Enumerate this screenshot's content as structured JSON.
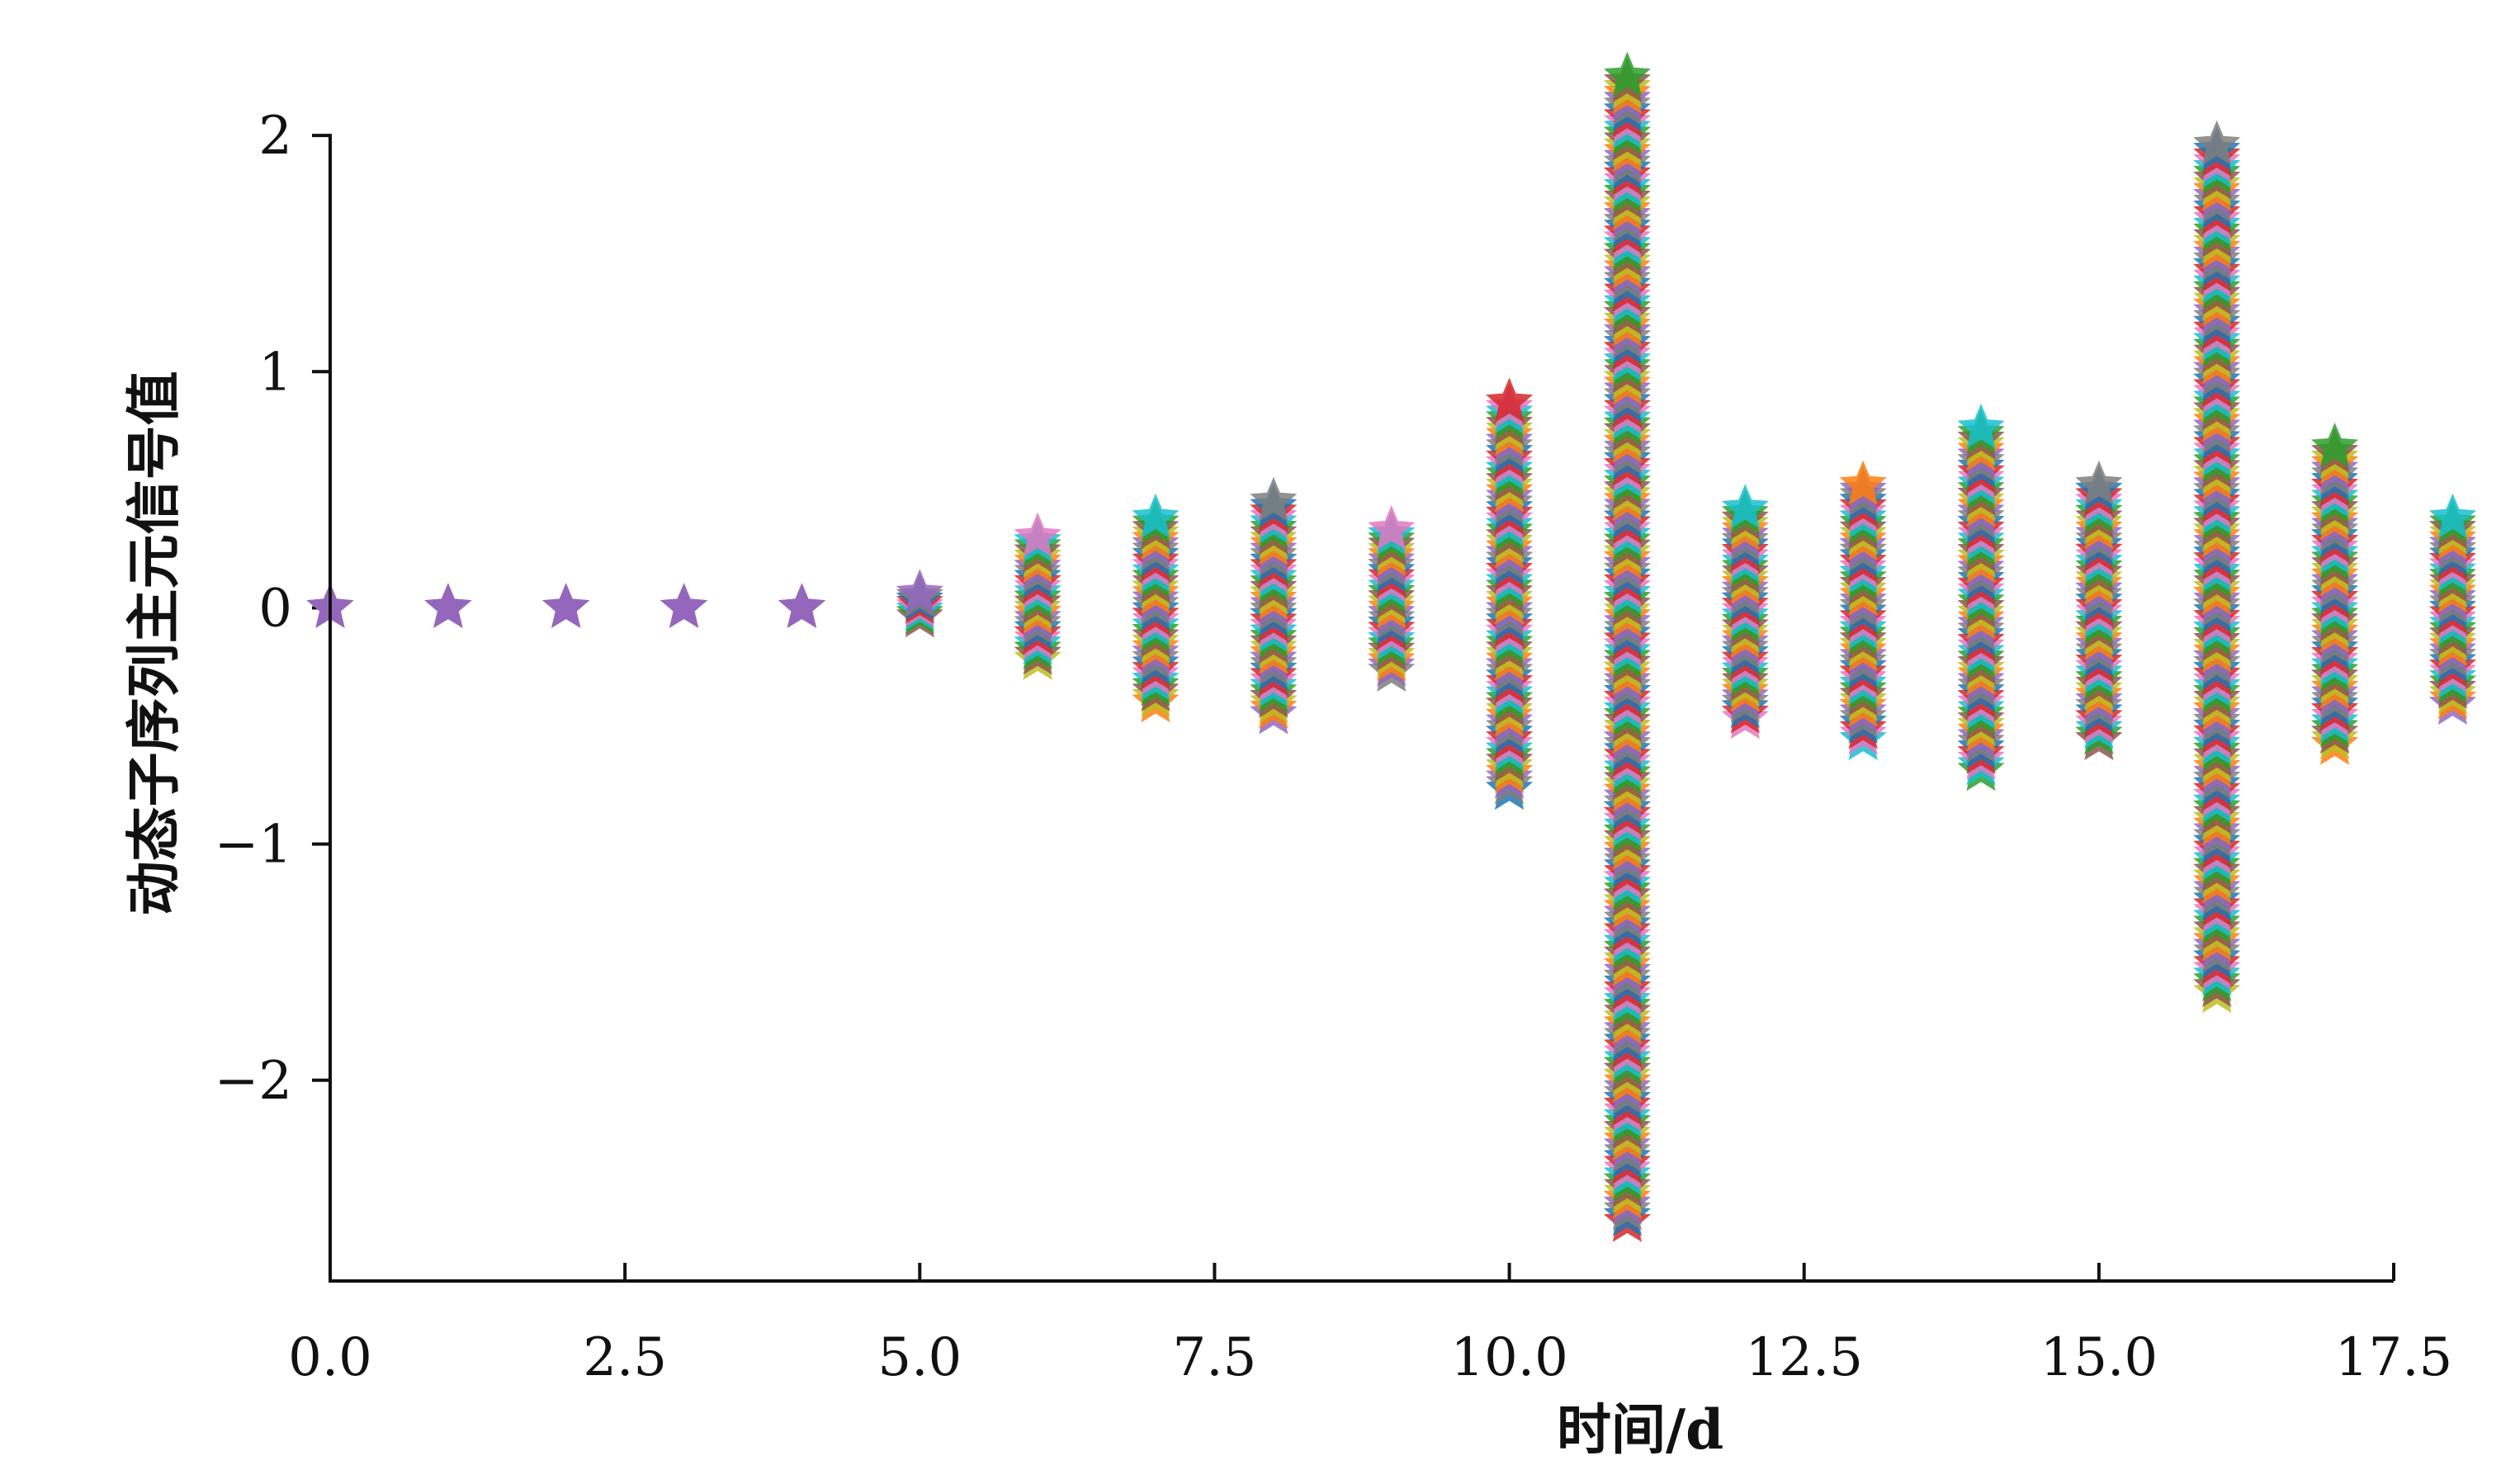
{
  "chart_data": {
    "type": "scatter",
    "title": "",
    "xlabel": "时间/d",
    "ylabel": "动态子序列主元信号值",
    "xlim": [
      0,
      17.5
    ],
    "ylim": [
      -2.85,
      2.35
    ],
    "x_ticks": [
      "0.0",
      "2.5",
      "5.0",
      "7.5",
      "10.0",
      "12.5",
      "15.0",
      "17.5"
    ],
    "y_ticks": [
      "2",
      "1",
      "0",
      "−1",
      "−2"
    ],
    "marker": "star",
    "grid": false,
    "legend": "none",
    "palette": [
      "#1f77b4",
      "#ff7f0e",
      "#2ca02c",
      "#d62728",
      "#9467bd",
      "#8c564b",
      "#e377c2",
      "#7f7f7f",
      "#bcbd22",
      "#17becf"
    ],
    "columns": [
      {
        "x": 0,
        "y_min": 0.0,
        "y_max": 0.0
      },
      {
        "x": 1,
        "y_min": 0.0,
        "y_max": 0.0
      },
      {
        "x": 2,
        "y_min": 0.0,
        "y_max": 0.0
      },
      {
        "x": 3,
        "y_min": 0.0,
        "y_max": 0.0
      },
      {
        "x": 4,
        "y_min": 0.0,
        "y_max": 0.0
      },
      {
        "x": 5,
        "y_min": -0.04,
        "y_max": 0.06
      },
      {
        "x": 6,
        "y_min": -0.22,
        "y_max": 0.3
      },
      {
        "x": 7,
        "y_min": -0.4,
        "y_max": 0.38
      },
      {
        "x": 8,
        "y_min": -0.45,
        "y_max": 0.45
      },
      {
        "x": 9,
        "y_min": -0.27,
        "y_max": 0.33
      },
      {
        "x": 10,
        "y_min": -0.77,
        "y_max": 0.87
      },
      {
        "x": 11,
        "y_min": -2.6,
        "y_max": 2.25
      },
      {
        "x": 12,
        "y_min": -0.47,
        "y_max": 0.42
      },
      {
        "x": 13,
        "y_min": -0.56,
        "y_max": 0.52
      },
      {
        "x": 14,
        "y_min": -0.69,
        "y_max": 0.76
      },
      {
        "x": 15,
        "y_min": -0.56,
        "y_max": 0.52
      },
      {
        "x": 16,
        "y_min": -1.63,
        "y_max": 1.96
      },
      {
        "x": 17,
        "y_min": -0.58,
        "y_max": 0.68
      },
      {
        "x": 18,
        "y_min": -0.41,
        "y_max": 0.38
      }
    ]
  }
}
